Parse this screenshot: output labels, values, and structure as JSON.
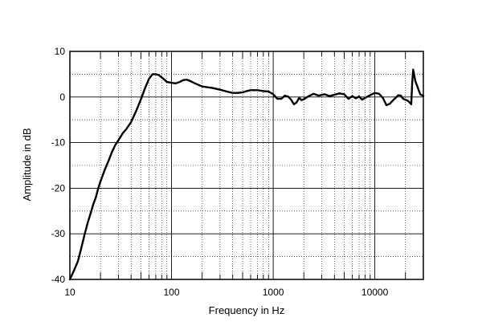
{
  "chart_data": {
    "type": "line",
    "xlabel": "Frequency in Hz",
    "ylabel": "Amplitude in dB",
    "x_scale": "log",
    "xlim": [
      10,
      30000
    ],
    "ylim": [
      -40,
      10
    ],
    "x_ticks": [
      {
        "value": 10,
        "label": "10"
      },
      {
        "value": 100,
        "label": "100"
      },
      {
        "value": 1000,
        "label": "1000"
      },
      {
        "value": 10000,
        "label": "10000"
      }
    ],
    "y_ticks": [
      {
        "value": 10,
        "label": "10"
      },
      {
        "value": 0,
        "label": "0"
      },
      {
        "value": -10,
        "label": "-10"
      },
      {
        "value": -20,
        "label": "-20"
      },
      {
        "value": -30,
        "label": "-30"
      },
      {
        "value": -40,
        "label": "-40"
      }
    ],
    "grid": true,
    "series": [
      {
        "color": "#000000",
        "points": [
          [
            10,
            -40
          ],
          [
            11,
            -38
          ],
          [
            12,
            -36
          ],
          [
            13,
            -33
          ],
          [
            14,
            -30
          ],
          [
            15,
            -27.5
          ],
          [
            16,
            -25.5
          ],
          [
            17,
            -23.5
          ],
          [
            18,
            -22
          ],
          [
            19,
            -20
          ],
          [
            20,
            -18.5
          ],
          [
            22,
            -16
          ],
          [
            24,
            -14
          ],
          [
            26,
            -12
          ],
          [
            28,
            -10.5
          ],
          [
            30,
            -9.5
          ],
          [
            33,
            -8
          ],
          [
            36,
            -7
          ],
          [
            40,
            -5.5
          ],
          [
            45,
            -3
          ],
          [
            50,
            -0.5
          ],
          [
            55,
            2
          ],
          [
            60,
            4
          ],
          [
            65,
            5
          ],
          [
            70,
            5
          ],
          [
            75,
            4.8
          ],
          [
            80,
            4.3
          ],
          [
            85,
            3.8
          ],
          [
            90,
            3.3
          ],
          [
            95,
            3.2
          ],
          [
            100,
            3.1
          ],
          [
            110,
            3.0
          ],
          [
            120,
            3.3
          ],
          [
            130,
            3.7
          ],
          [
            140,
            3.8
          ],
          [
            150,
            3.6
          ],
          [
            170,
            3.0
          ],
          [
            200,
            2.3
          ],
          [
            250,
            2.0
          ],
          [
            300,
            1.6
          ],
          [
            350,
            1.2
          ],
          [
            400,
            0.9
          ],
          [
            450,
            0.9
          ],
          [
            500,
            1.0
          ],
          [
            550,
            1.3
          ],
          [
            600,
            1.5
          ],
          [
            700,
            1.5
          ],
          [
            800,
            1.3
          ],
          [
            900,
            1.2
          ],
          [
            1000,
            0.6
          ],
          [
            1100,
            -0.4
          ],
          [
            1200,
            -0.4
          ],
          [
            1300,
            0.3
          ],
          [
            1400,
            0.1
          ],
          [
            1500,
            -0.6
          ],
          [
            1600,
            -1.6
          ],
          [
            1700,
            -1.2
          ],
          [
            1800,
            -0.2
          ],
          [
            1900,
            -0.7
          ],
          [
            2000,
            -0.5
          ],
          [
            2200,
            0.1
          ],
          [
            2500,
            0.7
          ],
          [
            2800,
            0.3
          ],
          [
            3200,
            0.6
          ],
          [
            3600,
            0.2
          ],
          [
            4000,
            0.5
          ],
          [
            4500,
            0.8
          ],
          [
            5000,
            0.6
          ],
          [
            5500,
            -0.4
          ],
          [
            6000,
            0.2
          ],
          [
            6500,
            -0.3
          ],
          [
            7000,
            0.1
          ],
          [
            7500,
            -0.6
          ],
          [
            8000,
            -0.2
          ],
          [
            9000,
            0.4
          ],
          [
            10000,
            0.9
          ],
          [
            11000,
            0.7
          ],
          [
            12000,
            -0.2
          ],
          [
            13000,
            -1.8
          ],
          [
            14000,
            -1.5
          ],
          [
            15000,
            -0.8
          ],
          [
            16000,
            -0.2
          ],
          [
            17000,
            0.4
          ],
          [
            18000,
            0.3
          ],
          [
            19000,
            -0.4
          ],
          [
            20000,
            -0.6
          ],
          [
            21000,
            -0.8
          ],
          [
            22000,
            -1.2
          ],
          [
            22800,
            -1.6
          ],
          [
            23300,
            3
          ],
          [
            23800,
            6
          ],
          [
            24300,
            5
          ],
          [
            25000,
            3.5
          ],
          [
            26000,
            2.5
          ],
          [
            27000,
            1.5
          ],
          [
            28000,
            0.6
          ],
          [
            29000,
            0.4
          ],
          [
            30000,
            0.2
          ]
        ]
      }
    ]
  }
}
